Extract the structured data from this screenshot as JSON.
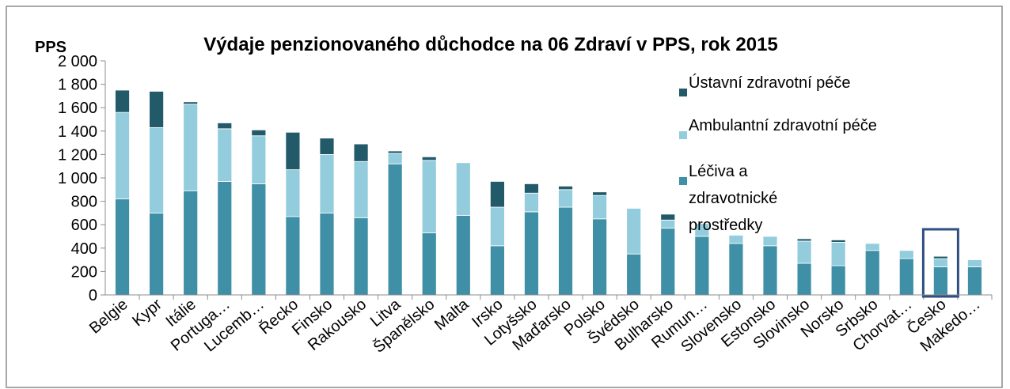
{
  "chart_data": {
    "type": "stacked_bar",
    "title": "Výdaje penzionovaného důchodce na 06 Zdraví v PPS, rok 2015",
    "y_axis_label": "PPS",
    "categories": [
      "Belgie",
      "Kypr",
      "Itálie",
      "Portuga…",
      "Lucemb…",
      "Řecko",
      "Finsko",
      "Rakousko",
      "Litva",
      "Španělsko",
      "Malta",
      "Irsko",
      "Lotyšsko",
      "Maďarsko",
      "Polsko",
      "Švédsko",
      "Bulharsko",
      "Rumun…",
      "Slovensko",
      "Estonsko",
      "Slovinsko",
      "Norsko",
      "Srbsko",
      "Chorvat…",
      "Česko",
      "Makedo…"
    ],
    "series": [
      {
        "name": "Léčiva a zdravotnické prostředky",
        "color": "#3f8fa6",
        "values": [
          820,
          700,
          890,
          970,
          950,
          670,
          700,
          660,
          1120,
          530,
          680,
          420,
          710,
          750,
          650,
          350,
          570,
          500,
          440,
          420,
          270,
          250,
          380,
          310,
          240,
          240
        ]
      },
      {
        "name": "Ambulantní zdravotní péče",
        "color": "#93cddd",
        "values": [
          740,
          730,
          740,
          450,
          410,
          400,
          500,
          480,
          90,
          620,
          450,
          330,
          160,
          150,
          200,
          390,
          70,
          110,
          70,
          80,
          190,
          200,
          60,
          70,
          70,
          60
        ]
      },
      {
        "name": "Ústavní zdravotní péče",
        "color": "#225a6a",
        "values": [
          190,
          310,
          20,
          50,
          50,
          320,
          140,
          150,
          20,
          30,
          0,
          220,
          80,
          30,
          30,
          0,
          50,
          0,
          0,
          0,
          20,
          20,
          0,
          0,
          20,
          0
        ]
      }
    ],
    "ylim": [
      0,
      2000
    ],
    "yticks": [
      0,
      200,
      400,
      600,
      800,
      {
        "value": 1000,
        "label": "1 000"
      },
      {
        "value": 1200,
        "label": "1 200"
      },
      {
        "value": 1400,
        "label": "1 400"
      },
      {
        "value": 1600,
        "label": "1 600"
      },
      {
        "value": 1800,
        "label": "1 800"
      },
      {
        "value": 2000,
        "label": "2 000"
      }
    ],
    "highlight": "Česko",
    "grid": false
  }
}
